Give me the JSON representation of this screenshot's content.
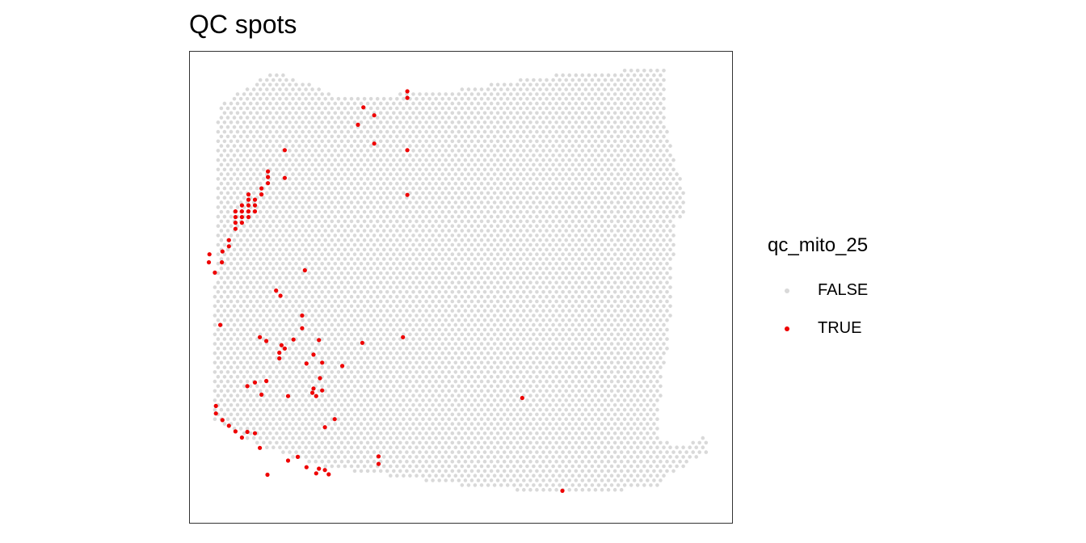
{
  "chart_data": {
    "type": "scatter",
    "title": "QC spots",
    "xlabel": "",
    "ylabel": "",
    "grid": false,
    "legend_position": "right",
    "legend": {
      "title": "qc_mito_25",
      "items": [
        {
          "label": "FALSE",
          "color": "#d9d9d9"
        },
        {
          "label": "TRUE",
          "color": "#ee0000"
        }
      ]
    },
    "xlim": [
      0,
      100
    ],
    "ylim": [
      0,
      100
    ],
    "series": [
      {
        "name": "TRUE",
        "color": "#ee0000",
        "points": [
          [
            40.1,
            91.6
          ],
          [
            40.1,
            90.2
          ],
          [
            40.1,
            79.1
          ],
          [
            40.1,
            69.6
          ],
          [
            34.0,
            86.5
          ],
          [
            34.0,
            80.5
          ],
          [
            32.0,
            88.2
          ],
          [
            31.0,
            84.5
          ],
          [
            17.5,
            79.1
          ],
          [
            17.5,
            73.2
          ],
          [
            14.4,
            74.6
          ],
          [
            14.4,
            73.4
          ],
          [
            14.4,
            72.1
          ],
          [
            13.2,
            71.0
          ],
          [
            13.2,
            69.7
          ],
          [
            12.0,
            68.6
          ],
          [
            12.0,
            67.4
          ],
          [
            12.0,
            66.1
          ],
          [
            10.8,
            69.7
          ],
          [
            10.8,
            68.6
          ],
          [
            10.8,
            67.4
          ],
          [
            10.8,
            66.1
          ],
          [
            10.8,
            64.9
          ],
          [
            9.6,
            67.4
          ],
          [
            9.6,
            66.1
          ],
          [
            9.6,
            64.9
          ],
          [
            9.6,
            63.7
          ],
          [
            8.4,
            66.1
          ],
          [
            8.4,
            64.9
          ],
          [
            8.4,
            63.7
          ],
          [
            8.4,
            62.4
          ],
          [
            7.2,
            60.0
          ],
          [
            7.2,
            58.7
          ],
          [
            6.0,
            57.6
          ],
          [
            5.9,
            55.3
          ],
          [
            4.6,
            53.1
          ],
          [
            3.6,
            57.0
          ],
          [
            3.5,
            55.3
          ],
          [
            21.2,
            53.6
          ],
          [
            15.9,
            49.3
          ],
          [
            16.7,
            48.2
          ],
          [
            20.7,
            44.0
          ],
          [
            5.6,
            42.0
          ],
          [
            20.7,
            41.3
          ],
          [
            19.1,
            38.9
          ],
          [
            23.8,
            38.8
          ],
          [
            31.8,
            38.2
          ],
          [
            39.3,
            39.4
          ],
          [
            16.9,
            37.7
          ],
          [
            12.9,
            39.4
          ],
          [
            14.1,
            38.6
          ],
          [
            16.5,
            36.1
          ],
          [
            16.5,
            34.9
          ],
          [
            17.5,
            37.0
          ],
          [
            22.8,
            35.7
          ],
          [
            21.5,
            33.8
          ],
          [
            24.4,
            34.0
          ],
          [
            28.1,
            33.3
          ],
          [
            24.0,
            30.7
          ],
          [
            24.4,
            28.1
          ],
          [
            23.3,
            26.9
          ],
          [
            22.8,
            28.5
          ],
          [
            14.1,
            30.1
          ],
          [
            12.0,
            29.8
          ],
          [
            10.6,
            29.0
          ],
          [
            13.2,
            27.2
          ],
          [
            18.1,
            26.9
          ],
          [
            22.6,
            27.6
          ],
          [
            26.7,
            22.0
          ],
          [
            24.9,
            20.3
          ],
          [
            4.8,
            24.8
          ],
          [
            4.8,
            23.2
          ],
          [
            6.0,
            21.8
          ],
          [
            7.2,
            20.6
          ],
          [
            8.4,
            19.4
          ],
          [
            9.6,
            18.1
          ],
          [
            10.6,
            19.3
          ],
          [
            12.0,
            19.0
          ],
          [
            12.9,
            15.9
          ],
          [
            23.8,
            11.5
          ],
          [
            24.9,
            11.2
          ],
          [
            21.5,
            11.8
          ],
          [
            19.9,
            14.0
          ],
          [
            18.1,
            13.2
          ],
          [
            23.3,
            10.5
          ],
          [
            25.6,
            10.3
          ],
          [
            14.3,
            10.2
          ],
          [
            34.8,
            12.5
          ],
          [
            34.8,
            14.1
          ],
          [
            61.3,
            26.5
          ],
          [
            68.7,
            6.8
          ]
        ]
      },
      {
        "name": "FALSE",
        "color": "#d9d9d9"
      }
    ]
  }
}
